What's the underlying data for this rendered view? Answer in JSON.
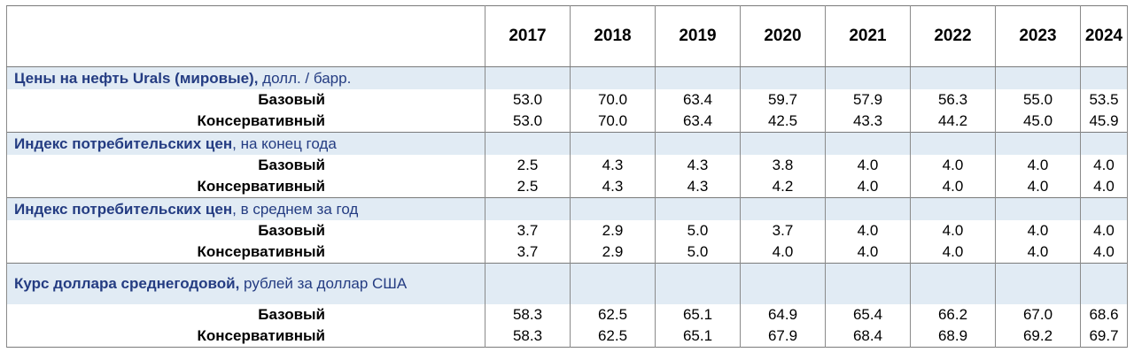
{
  "table": {
    "years": [
      "2017",
      "2018",
      "2019",
      "2020",
      "2021",
      "2022",
      "2023",
      "2024"
    ],
    "sections": [
      {
        "title_bold": "Цены на нефть Urals (мировые),",
        "title_rest": " долл. / барр.",
        "rows": [
          {
            "scenario": "Базовый",
            "values": [
              "53.0",
              "70.0",
              "63.4",
              "59.7",
              "57.9",
              "56.3",
              "55.0",
              "53.5"
            ]
          },
          {
            "scenario": "Консервативный",
            "values": [
              "53.0",
              "70.0",
              "63.4",
              "42.5",
              "43.3",
              "44.2",
              "45.0",
              "45.9"
            ]
          }
        ]
      },
      {
        "title_bold": "Индекс потребительских цен",
        "title_rest": ", на конец года",
        "rows": [
          {
            "scenario": "Базовый",
            "values": [
              "2.5",
              "4.3",
              "4.3",
              "3.8",
              "4.0",
              "4.0",
              "4.0",
              "4.0"
            ]
          },
          {
            "scenario": "Консервативный",
            "values": [
              "2.5",
              "4.3",
              "4.3",
              "4.2",
              "4.0",
              "4.0",
              "4.0",
              "4.0"
            ]
          }
        ]
      },
      {
        "title_bold": "Индекс потребительских цен",
        "title_rest": ", в среднем за год",
        "rows": [
          {
            "scenario": "Базовый",
            "values": [
              "3.7",
              "2.9",
              "5.0",
              "3.7",
              "4.0",
              "4.0",
              "4.0",
              "4.0"
            ]
          },
          {
            "scenario": "Консервативный",
            "values": [
              "3.7",
              "2.9",
              "5.0",
              "4.0",
              "4.0",
              "4.0",
              "4.0",
              "4.0"
            ]
          }
        ]
      },
      {
        "title_bold": "Курс доллара среднегодовой,",
        "title_rest": " рублей за доллар США",
        "rows": [
          {
            "scenario": "Базовый",
            "values": [
              "58.3",
              "62.5",
              "65.1",
              "64.9",
              "65.4",
              "66.2",
              "67.0",
              "68.6"
            ]
          },
          {
            "scenario": "Консервативный",
            "values": [
              "58.3",
              "62.5",
              "65.1",
              "67.9",
              "68.4",
              "68.9",
              "69.2",
              "69.7"
            ]
          }
        ]
      }
    ]
  },
  "colors": {
    "section_bg": "#e1ebf4",
    "section_text": "#243c82",
    "border": "#7a7a7a"
  }
}
